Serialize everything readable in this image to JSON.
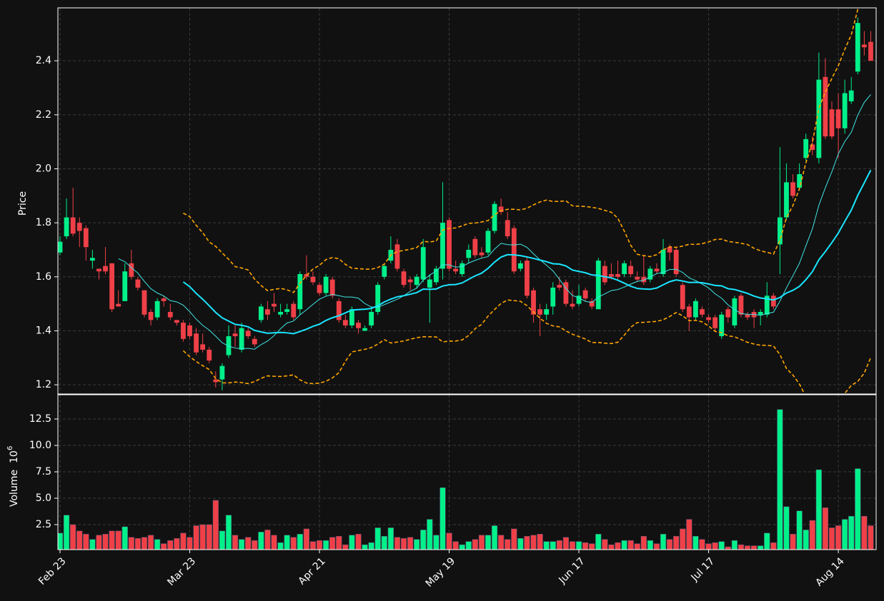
{
  "chart_data": {
    "type": "candlestick",
    "ylabel": "Price",
    "volume_label": "Volume",
    "volume_offset_base": "10",
    "volume_offset_exponent": "6",
    "categories": [
      "Feb 23",
      null,
      null,
      null,
      null,
      null,
      null,
      null,
      null,
      null,
      null,
      null,
      null,
      null,
      null,
      null,
      null,
      null,
      null,
      null,
      "Mar 23",
      null,
      null,
      null,
      null,
      null,
      null,
      null,
      null,
      null,
      null,
      null,
      null,
      null,
      null,
      null,
      null,
      null,
      null,
      null,
      "Apr 21",
      null,
      null,
      null,
      null,
      null,
      null,
      null,
      null,
      null,
      null,
      null,
      null,
      null,
      null,
      null,
      null,
      null,
      null,
      null,
      "May 19",
      null,
      null,
      null,
      null,
      null,
      null,
      null,
      null,
      null,
      null,
      null,
      null,
      null,
      null,
      null,
      null,
      null,
      null,
      null,
      "Jun 17",
      null,
      null,
      null,
      null,
      null,
      null,
      null,
      null,
      null,
      null,
      null,
      null,
      null,
      null,
      null,
      null,
      null,
      null,
      null,
      "Jul 17",
      null,
      null,
      null,
      null,
      null,
      null,
      null,
      null,
      null,
      null,
      null,
      null,
      null,
      null,
      null,
      null,
      null,
      null,
      null,
      "Aug 14",
      null,
      null,
      null,
      null,
      null
    ],
    "open": [
      1.69,
      1.75,
      1.82,
      1.8,
      1.78,
      1.66,
      1.63,
      1.64,
      1.65,
      1.5,
      1.51,
      1.65,
      1.59,
      1.55,
      1.47,
      1.45,
      1.52,
      1.47,
      1.44,
      1.43,
      1.42,
      1.39,
      1.35,
      1.33,
      1.22,
      1.22,
      1.31,
      1.39,
      1.33,
      1.4,
      1.37,
      1.44,
      1.48,
      1.5,
      1.46,
      1.47,
      1.5,
      1.48,
      1.61,
      1.6,
      1.57,
      1.54,
      1.59,
      1.51,
      1.44,
      1.42,
      1.43,
      1.4,
      1.42,
      1.47,
      1.6,
      1.66,
      1.72,
      1.62,
      1.59,
      1.57,
      1.59,
      1.56,
      1.58,
      1.63,
      1.81,
      1.63,
      1.61,
      1.67,
      1.74,
      1.69,
      1.69,
      1.77,
      1.86,
      1.81,
      1.78,
      1.63,
      1.66,
      1.55,
      1.48,
      1.46,
      1.49,
      1.57,
      1.58,
      1.5,
      1.5,
      1.55,
      1.51,
      1.48,
      1.64,
      1.61,
      1.61,
      1.61,
      1.64,
      1.6,
      1.6,
      1.59,
      1.63,
      1.61,
      1.71,
      1.7,
      1.57,
      1.49,
      1.45,
      1.48,
      1.45,
      1.45,
      1.38,
      1.48,
      1.42,
      1.53,
      1.46,
      1.47,
      1.46,
      1.46,
      1.53,
      1.72,
      1.82,
      1.95,
      1.93,
      2.04,
      2.09,
      2.04,
      2.34,
      2.22,
      2.22,
      2.15,
      2.25,
      2.36,
      2.46,
      2.47
    ],
    "high": [
      1.75,
      1.89,
      1.93,
      1.82,
      1.79,
      1.7,
      1.63,
      1.71,
      1.65,
      1.55,
      1.65,
      1.7,
      1.6,
      1.55,
      1.48,
      1.52,
      1.53,
      1.5,
      1.44,
      1.44,
      1.43,
      1.41,
      1.39,
      1.34,
      1.25,
      1.28,
      1.42,
      1.42,
      1.43,
      1.41,
      1.38,
      1.5,
      1.51,
      1.54,
      1.5,
      1.5,
      1.51,
      1.62,
      1.68,
      1.62,
      1.58,
      1.61,
      1.6,
      1.52,
      1.46,
      1.49,
      1.44,
      1.42,
      1.49,
      1.58,
      1.65,
      1.75,
      1.74,
      1.63,
      1.6,
      1.61,
      1.74,
      1.61,
      1.64,
      1.95,
      1.82,
      1.66,
      1.66,
      1.72,
      1.75,
      1.71,
      1.78,
      1.88,
      1.89,
      1.84,
      1.79,
      1.66,
      1.67,
      1.56,
      1.5,
      1.5,
      1.58,
      1.6,
      1.59,
      1.55,
      1.57,
      1.56,
      1.52,
      1.67,
      1.66,
      1.65,
      1.66,
      1.66,
      1.66,
      1.62,
      1.68,
      1.64,
      1.65,
      1.74,
      1.72,
      1.71,
      1.58,
      1.5,
      1.52,
      1.49,
      1.46,
      1.46,
      1.47,
      1.49,
      1.53,
      1.54,
      1.47,
      1.48,
      1.48,
      1.58,
      1.54,
      2.08,
      2.02,
      1.98,
      2.02,
      2.13,
      2.12,
      2.43,
      2.41,
      2.25,
      2.28,
      2.33,
      2.34,
      2.56,
      2.51,
      2.51
    ],
    "low": [
      1.68,
      1.74,
      1.75,
      1.71,
      1.66,
      1.63,
      1.59,
      1.61,
      1.47,
      1.49,
      1.51,
      1.59,
      1.55,
      1.45,
      1.42,
      1.44,
      1.49,
      1.44,
      1.42,
      1.36,
      1.37,
      1.31,
      1.32,
      1.28,
      1.19,
      1.18,
      1.3,
      1.34,
      1.32,
      1.37,
      1.34,
      1.43,
      1.44,
      1.47,
      1.45,
      1.46,
      1.44,
      1.46,
      1.59,
      1.57,
      1.53,
      1.53,
      1.52,
      1.43,
      1.41,
      1.41,
      1.39,
      1.4,
      1.41,
      1.46,
      1.59,
      1.65,
      1.62,
      1.56,
      1.55,
      1.56,
      1.58,
      1.43,
      1.57,
      1.59,
      1.62,
      1.61,
      1.6,
      1.65,
      1.67,
      1.67,
      1.68,
      1.76,
      1.83,
      1.74,
      1.61,
      1.62,
      1.52,
      1.43,
      1.38,
      1.44,
      1.46,
      1.55,
      1.49,
      1.48,
      1.49,
      1.51,
      1.48,
      1.48,
      1.57,
      1.59,
      1.59,
      1.6,
      1.6,
      1.58,
      1.57,
      1.58,
      1.61,
      1.6,
      1.66,
      1.6,
      1.47,
      1.4,
      1.44,
      1.45,
      1.43,
      1.4,
      1.37,
      1.43,
      1.41,
      1.45,
      1.44,
      1.41,
      1.42,
      1.45,
      1.48,
      1.61,
      1.81,
      1.89,
      1.92,
      2.03,
      2.05,
      2.02,
      2.11,
      2.11,
      2.04,
      2.13,
      2.24,
      2.35,
      2.42,
      2.4
    ],
    "close": [
      1.73,
      1.82,
      1.76,
      1.77,
      1.71,
      1.67,
      1.62,
      1.62,
      1.48,
      1.49,
      1.62,
      1.6,
      1.56,
      1.46,
      1.44,
      1.51,
      1.51,
      1.45,
      1.43,
      1.37,
      1.38,
      1.32,
      1.33,
      1.29,
      1.21,
      1.27,
      1.38,
      1.38,
      1.41,
      1.38,
      1.35,
      1.49,
      1.46,
      1.49,
      1.47,
      1.48,
      1.45,
      1.61,
      1.6,
      1.58,
      1.54,
      1.6,
      1.53,
      1.44,
      1.42,
      1.48,
      1.41,
      1.41,
      1.47,
      1.57,
      1.64,
      1.7,
      1.63,
      1.57,
      1.58,
      1.6,
      1.71,
      1.59,
      1.63,
      1.8,
      1.63,
      1.62,
      1.65,
      1.7,
      1.68,
      1.68,
      1.77,
      1.87,
      1.84,
      1.75,
      1.62,
      1.65,
      1.53,
      1.46,
      1.46,
      1.48,
      1.56,
      1.56,
      1.5,
      1.49,
      1.53,
      1.52,
      1.49,
      1.66,
      1.58,
      1.6,
      1.6,
      1.65,
      1.61,
      1.59,
      1.58,
      1.63,
      1.62,
      1.7,
      1.69,
      1.61,
      1.48,
      1.45,
      1.51,
      1.46,
      1.44,
      1.41,
      1.46,
      1.45,
      1.52,
      1.46,
      1.45,
      1.45,
      1.47,
      1.53,
      1.49,
      1.82,
      1.95,
      1.9,
      1.98,
      2.11,
      2.07,
      2.33,
      2.12,
      2.12,
      2.15,
      2.28,
      2.29,
      2.54,
      2.45,
      2.4
    ],
    "volume": [
      1.7,
      3.4,
      2.5,
      1.9,
      1.6,
      1.1,
      1.5,
      1.6,
      1.9,
      1.9,
      2.3,
      1.3,
      1.2,
      1.3,
      1.5,
      1.1,
      0.7,
      1.0,
      1.2,
      1.7,
      1.3,
      2.4,
      2.5,
      2.5,
      4.8,
      1.9,
      3.4,
      1.5,
      1.1,
      1.3,
      1.0,
      1.8,
      2.0,
      1.5,
      0.8,
      1.5,
      1.3,
      1.6,
      2.1,
      0.9,
      1.0,
      1.0,
      1.3,
      1.4,
      0.6,
      1.5,
      1.6,
      0.6,
      0.8,
      2.2,
      1.4,
      2.2,
      1.3,
      1.2,
      1.3,
      1.1,
      2.0,
      3.0,
      1.5,
      6.0,
      1.7,
      0.9,
      0.6,
      0.9,
      1.1,
      1.5,
      1.5,
      2.4,
      1.5,
      1.1,
      2.1,
      1.2,
      1.4,
      1.5,
      1.6,
      0.9,
      0.9,
      1.0,
      1.3,
      0.9,
      0.9,
      0.8,
      0.7,
      1.6,
      1.1,
      0.6,
      0.8,
      1.0,
      1.0,
      0.7,
      1.4,
      1.0,
      0.7,
      1.6,
      1.1,
      1.4,
      2.1,
      3.0,
      1.4,
      1.1,
      0.7,
      0.8,
      0.9,
      0.4,
      1.0,
      0.6,
      0.5,
      0.5,
      0.5,
      1.7,
      0.8,
      13.4,
      4.2,
      1.6,
      3.8,
      2.0,
      2.9,
      7.7,
      4.1,
      2.2,
      2.4,
      3.0,
      3.3,
      7.8,
      3.3,
      2.4
    ],
    "ylim": [
      1.166,
      2.596
    ],
    "yticks": [
      1.2,
      1.4,
      1.6,
      1.8,
      {
        "value": 2,
        "label": "2.0"
      },
      2.2,
      2.4
    ],
    "volume_ylim": [
      0.135,
      14.8
    ],
    "volume_yticks": [
      2.5,
      {
        "value": 5,
        "label": "5.0"
      },
      7.5,
      {
        "value": 10,
        "label": "10.0"
      },
      12.5
    ],
    "up_color": "#00f08a",
    "down_color": "#ef4048",
    "mav": [
      10,
      20
    ],
    "mav_colors": [
      "#40e6e6",
      "#19e6ff"
    ],
    "bollinger": [
      20,
      2
    ],
    "bollinger_color": "#ffa500",
    "grid": true
  }
}
